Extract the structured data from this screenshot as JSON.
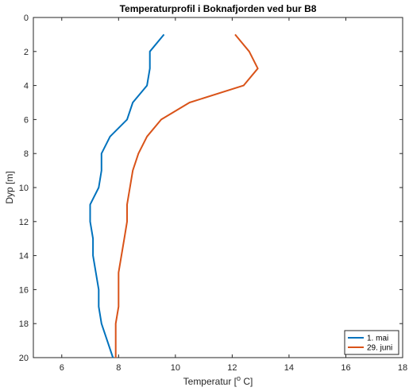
{
  "chart_data": {
    "type": "line",
    "title": "Temperaturprofil i Boknafjorden ved bur B8",
    "xlabel": "Temperatur [",
    "xlabel_sup": "o",
    "xlabel_end": " C]",
    "ylabel": "Dyp [m]",
    "xlim": [
      5,
      18
    ],
    "ylim": [
      0,
      20
    ],
    "y_reversed": true,
    "xticks": [
      6,
      8,
      10,
      12,
      14,
      16,
      18
    ],
    "yticks": [
      0,
      2,
      4,
      6,
      8,
      10,
      12,
      14,
      16,
      18,
      20
    ],
    "grid": false,
    "legend_position": "bottom-right",
    "series": [
      {
        "name": "1. mai",
        "color": "#0072BD",
        "points": [
          [
            9.6,
            1
          ],
          [
            9.1,
            2
          ],
          [
            9.1,
            3
          ],
          [
            9.0,
            4
          ],
          [
            8.5,
            5
          ],
          [
            8.3,
            6
          ],
          [
            7.7,
            7
          ],
          [
            7.4,
            8
          ],
          [
            7.4,
            9
          ],
          [
            7.3,
            10
          ],
          [
            7.0,
            11
          ],
          [
            7.0,
            12
          ],
          [
            7.1,
            13
          ],
          [
            7.1,
            14
          ],
          [
            7.2,
            15
          ],
          [
            7.3,
            16
          ],
          [
            7.3,
            17
          ],
          [
            7.4,
            18
          ],
          [
            7.6,
            19
          ],
          [
            7.8,
            20
          ]
        ]
      },
      {
        "name": "29. juni",
        "color": "#D95319",
        "points": [
          [
            12.1,
            1
          ],
          [
            12.6,
            2
          ],
          [
            12.9,
            3
          ],
          [
            12.4,
            4
          ],
          [
            10.5,
            5
          ],
          [
            9.5,
            6
          ],
          [
            9.0,
            7
          ],
          [
            8.7,
            8
          ],
          [
            8.5,
            9
          ],
          [
            8.4,
            10
          ],
          [
            8.3,
            11
          ],
          [
            8.3,
            12
          ],
          [
            8.2,
            13
          ],
          [
            8.1,
            14
          ],
          [
            8.0,
            15
          ],
          [
            8.0,
            16
          ],
          [
            8.0,
            17
          ],
          [
            7.9,
            18
          ],
          [
            7.9,
            19
          ],
          [
            7.9,
            20
          ]
        ]
      }
    ]
  }
}
